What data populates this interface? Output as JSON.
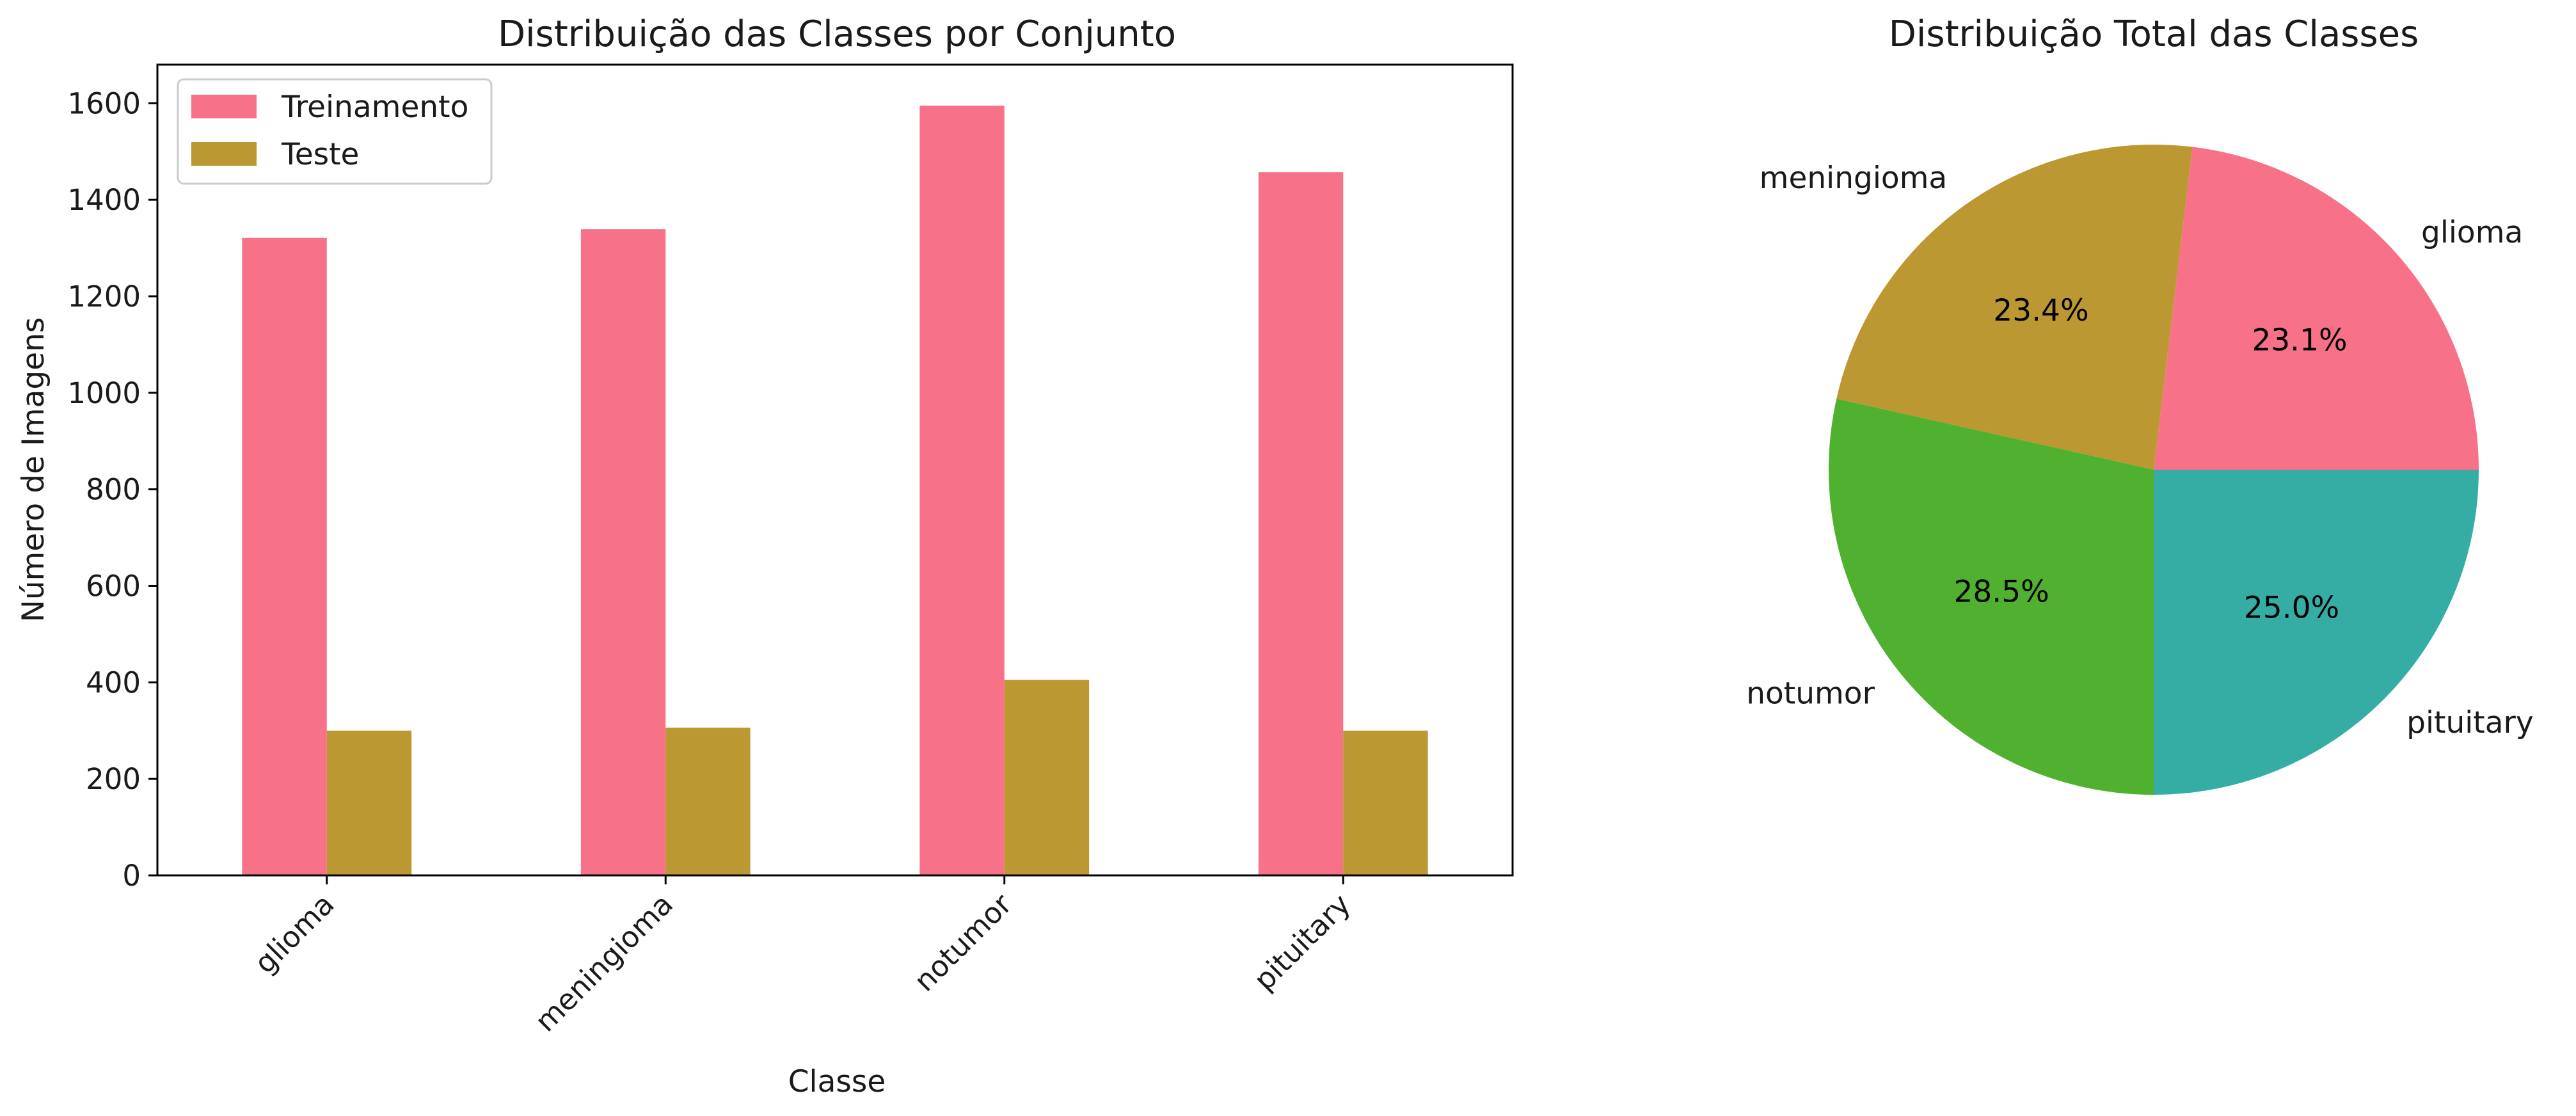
{
  "chart_data": [
    {
      "type": "bar",
      "title": "Distribuição das Classes por Conjunto",
      "xlabel": "Classe",
      "ylabel": "Número de Imagens",
      "categories": [
        "glioma",
        "meningioma",
        "notumor",
        "pituitary"
      ],
      "series": [
        {
          "name": "Treinamento",
          "values": [
            1321,
            1339,
            1595,
            1457
          ],
          "color": "#f77189"
        },
        {
          "name": "Teste",
          "values": [
            300,
            306,
            405,
            300
          ],
          "color": "#bb9832"
        }
      ],
      "ylim": [
        0,
        1680
      ],
      "yticks": [
        0,
        200,
        400,
        600,
        800,
        1000,
        1200,
        1400,
        1600
      ],
      "legend": "top-left",
      "grid": false
    },
    {
      "type": "pie",
      "title": "Distribuição Total das Classes",
      "slices": [
        {
          "label": "glioma",
          "pct_label": "23.1%",
          "value": 23.1,
          "color": "#f77189"
        },
        {
          "label": "meningioma",
          "pct_label": "23.4%",
          "value": 23.4,
          "color": "#bb9832"
        },
        {
          "label": "notumor",
          "pct_label": "28.5%",
          "value": 28.5,
          "color": "#50b131"
        },
        {
          "label": "pituitary",
          "pct_label": "25.0%",
          "value": 25.0,
          "color": "#36ada4"
        }
      ],
      "start_angle": 0,
      "direction": "counterclockwise"
    }
  ]
}
